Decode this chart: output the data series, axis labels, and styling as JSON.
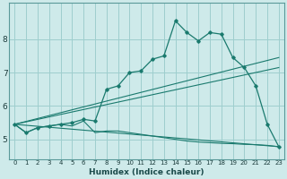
{
  "xlabel": "Humidex (Indice chaleur)",
  "bg_color": "#ceeaea",
  "grid_color": "#9ecece",
  "line_color": "#1a7a6e",
  "xlim": [
    -0.5,
    23.5
  ],
  "ylim": [
    4.4,
    9.1
  ],
  "yticks": [
    5,
    6,
    7,
    8
  ],
  "xticks": [
    0,
    1,
    2,
    3,
    4,
    5,
    6,
    7,
    8,
    9,
    10,
    11,
    12,
    13,
    14,
    15,
    16,
    17,
    18,
    19,
    20,
    21,
    22,
    23
  ],
  "series_bottom_x": [
    0,
    1,
    2,
    3,
    4,
    5,
    6,
    7,
    8,
    9,
    10,
    11,
    12,
    13,
    14,
    15,
    16,
    17,
    18,
    19,
    20,
    21,
    22,
    23
  ],
  "series_bottom_y": [
    5.45,
    5.2,
    5.35,
    5.4,
    5.45,
    5.4,
    5.55,
    5.2,
    5.25,
    5.25,
    5.2,
    5.15,
    5.1,
    5.05,
    5.0,
    4.95,
    4.92,
    4.9,
    4.88,
    4.87,
    4.85,
    4.84,
    4.82,
    4.78
  ],
  "series_main_x": [
    0,
    1,
    2,
    3,
    4,
    5,
    6,
    7,
    8,
    9,
    10,
    11,
    12,
    13,
    14,
    15,
    16,
    17,
    18,
    19,
    20,
    21,
    22,
    23
  ],
  "series_main_y": [
    5.45,
    5.2,
    5.35,
    5.4,
    5.45,
    5.5,
    5.6,
    5.55,
    6.5,
    6.6,
    7.0,
    7.05,
    7.4,
    7.5,
    8.55,
    8.2,
    7.95,
    8.2,
    8.15,
    7.45,
    7.15,
    6.6,
    5.45,
    4.78
  ],
  "line1_y_end": 7.45,
  "line2_y_end": 7.15,
  "line3_y_end": 4.78,
  "line_start_y": 5.45
}
